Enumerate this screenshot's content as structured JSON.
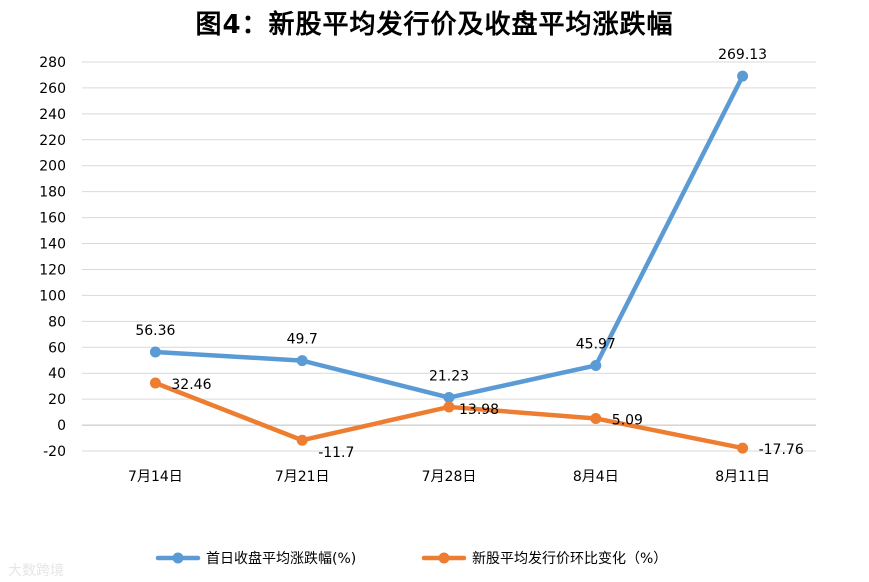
{
  "chart_data": {
    "type": "line",
    "title": "图4：新股平均发行价及收盘平均涨跌幅",
    "categories": [
      "7月14日",
      "7月21日",
      "7月28日",
      "8月4日",
      "8月11日"
    ],
    "ylim": [
      -20,
      280
    ],
    "y_ticks": [
      -20,
      0,
      20,
      40,
      60,
      80,
      100,
      120,
      140,
      160,
      180,
      200,
      220,
      240,
      260,
      280
    ],
    "grid": true,
    "legend_position": "bottom",
    "series": [
      {
        "name": "首日收盘平均涨跌幅(%)",
        "values": [
          56.36,
          49.7,
          21.23,
          45.97,
          269.13
        ],
        "labels": [
          "56.36",
          "49.7",
          "21.23",
          "45.97",
          "269.13"
        ],
        "color": "#5B9BD5"
      },
      {
        "name": "新股平均发行价环比变化（%）",
        "values": [
          32.46,
          -11.7,
          13.98,
          5.09,
          -17.76
        ],
        "labels": [
          "32.46",
          "-11.7",
          "13.98",
          "5.09",
          "-17.76"
        ],
        "color": "#ED7D31"
      }
    ]
  },
  "watermark": "大数跨境"
}
